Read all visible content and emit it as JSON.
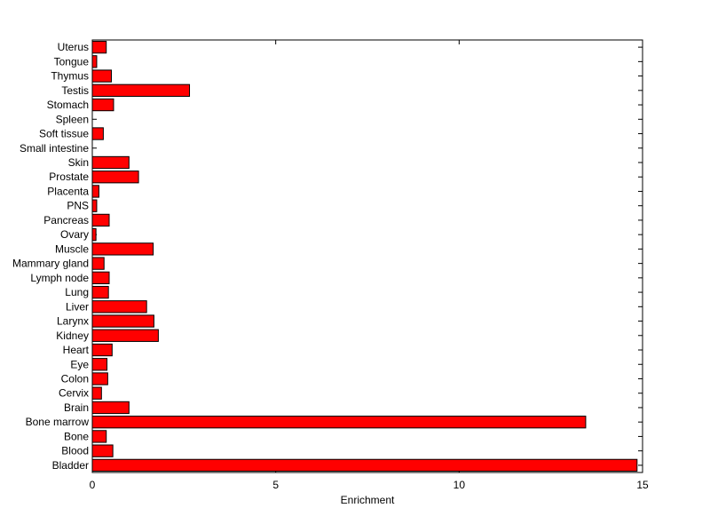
{
  "chart_data": {
    "type": "bar",
    "orientation": "horizontal",
    "xlabel": "Enrichment",
    "ylabel": "",
    "title": "",
    "xlim": [
      0,
      15
    ],
    "xticks": [
      0,
      5,
      10,
      15
    ],
    "grid": false,
    "bar_color": "#ff0000",
    "categories": [
      "Bladder",
      "Blood",
      "Bone",
      "Bone marrow",
      "Brain",
      "Cervix",
      "Colon",
      "Eye",
      "Heart",
      "Kidney",
      "Larynx",
      "Liver",
      "Lung",
      "Lymph node",
      "Mammary gland",
      "Muscle",
      "Ovary",
      "Pancreas",
      "PNS",
      "Placenta",
      "Prostate",
      "Skin",
      "Small intestine",
      "Soft tissue",
      "Spleen",
      "Stomach",
      "Testis",
      "Thymus",
      "Tongue",
      "Uterus"
    ],
    "values": [
      14.85,
      0.56,
      0.38,
      13.45,
      1.0,
      0.25,
      0.42,
      0.4,
      0.54,
      1.8,
      1.68,
      1.48,
      0.44,
      0.46,
      0.32,
      1.66,
      0.1,
      0.46,
      0.12,
      0.18,
      1.26,
      1.0,
      0.0,
      0.3,
      0.0,
      0.58,
      2.65,
      0.52,
      0.12,
      0.38
    ]
  }
}
